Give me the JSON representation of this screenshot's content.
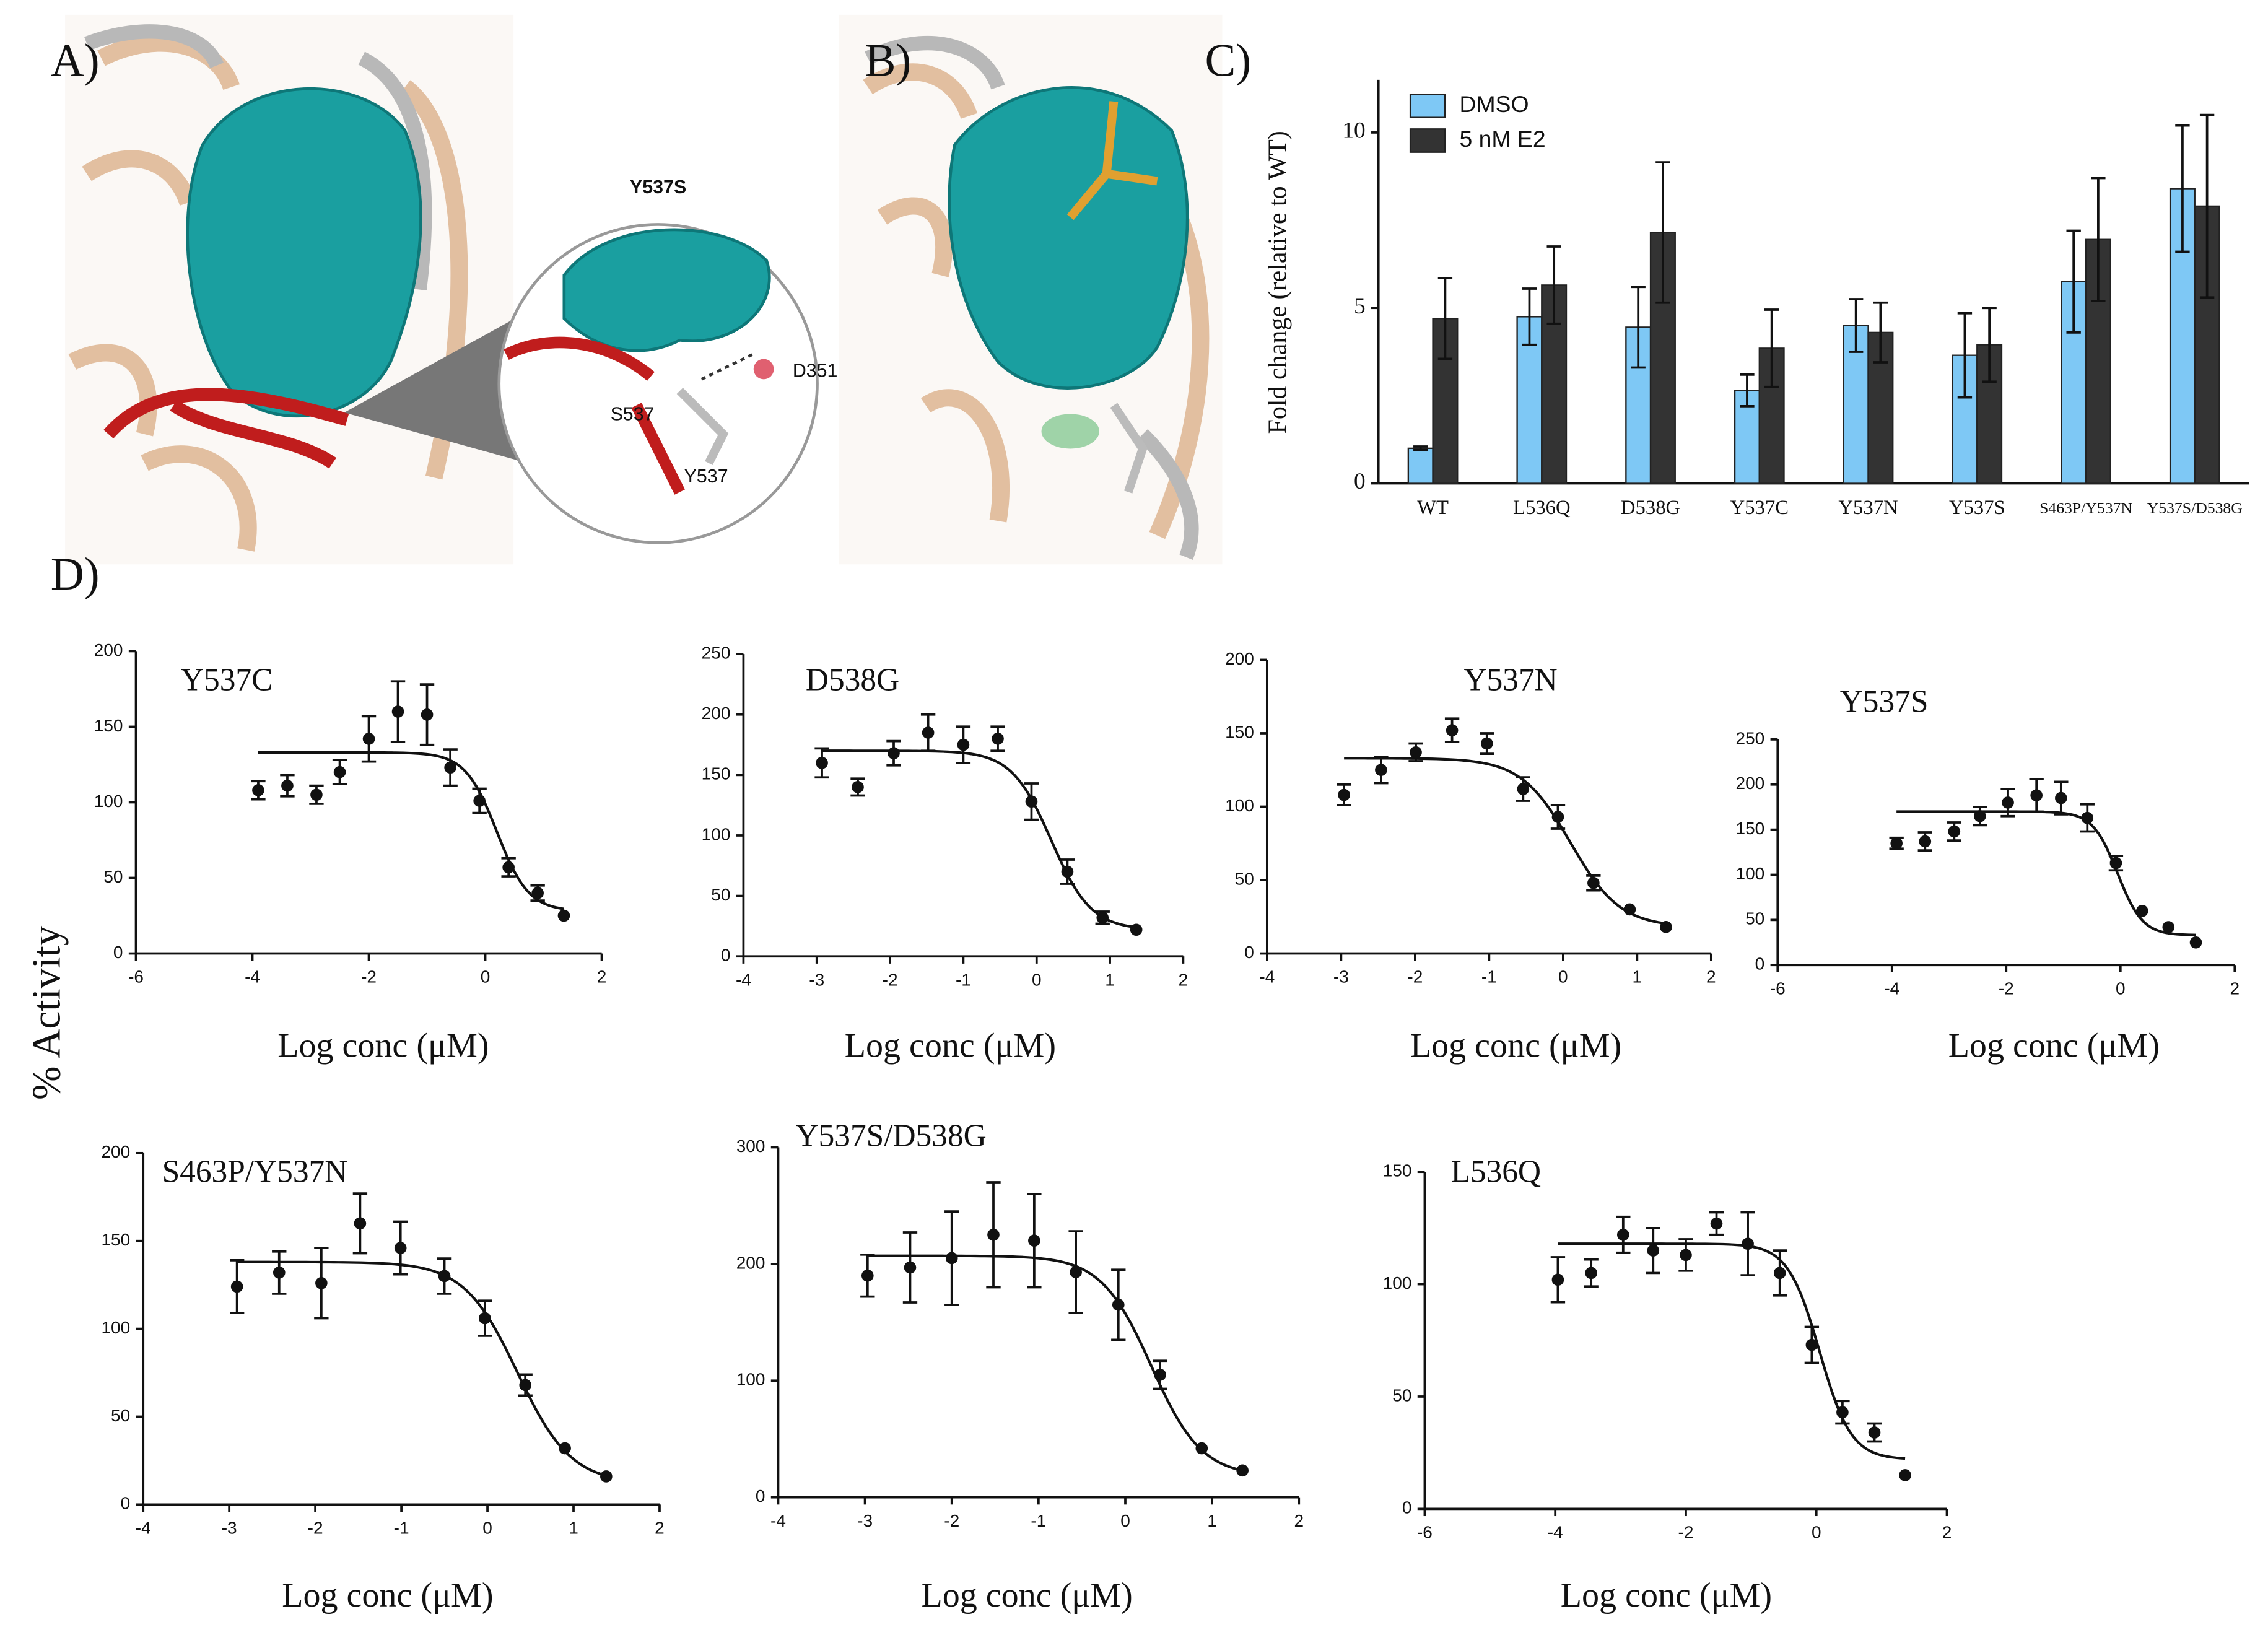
{
  "panels": {
    "A": {
      "label": "A)",
      "annotations": [
        "Y537S",
        "D351",
        "S537",
        "Y537"
      ]
    },
    "B": {
      "label": "B)"
    },
    "C": {
      "label": "C)"
    },
    "D": {
      "label": "D)",
      "y_label": "% Activity"
    }
  },
  "chart_data": [
    {
      "type": "bar",
      "y_label": "Fold change (relative to WT)",
      "categories": [
        "WT",
        "L536Q",
        "D538G",
        "Y537C",
        "Y537N",
        "Y537S",
        "S463P/Y537N",
        "Y537S/D538G"
      ],
      "series": [
        {
          "name": "DMSO",
          "color": "#7ec8f5",
          "values": [
            1.0,
            4.75,
            4.45,
            2.65,
            4.5,
            3.65,
            5.75,
            8.4
          ],
          "errors": [
            0.05,
            0.8,
            1.15,
            0.45,
            0.75,
            1.2,
            1.45,
            1.8
          ]
        },
        {
          "name": "5 nM E2",
          "color": "#333333",
          "values": [
            4.7,
            5.65,
            7.15,
            3.85,
            4.3,
            3.95,
            6.95,
            7.9
          ],
          "errors": [
            1.15,
            1.1,
            2.0,
            1.1,
            0.85,
            1.05,
            1.75,
            2.6
          ]
        }
      ],
      "ylim": [
        0,
        11.5
      ],
      "yticks": [
        0,
        5,
        10
      ],
      "legend": "upper-left"
    },
    {
      "type": "scatter",
      "title": "Y537C",
      "x_label": "Log conc (μM)",
      "color": "#111111",
      "x": [
        -3.9,
        -3.4,
        -2.9,
        -2.5,
        -2.0,
        -1.5,
        -1.0,
        -0.6,
        -0.1,
        0.4,
        0.9,
        1.35
      ],
      "values": [
        108,
        111,
        105,
        120,
        142,
        160,
        158,
        123,
        101,
        57,
        40,
        25
      ],
      "errors": [
        6,
        7,
        6,
        8,
        15,
        20,
        20,
        12,
        8,
        6,
        5,
        0
      ],
      "fit": {
        "top": 133,
        "bottom": 28,
        "log_ic50": 0.2,
        "hill": 1.6
      },
      "xlim": [
        -6,
        2
      ],
      "xticks": [
        -6,
        -4,
        -2,
        0,
        2
      ],
      "ylim": [
        0,
        200
      ],
      "yticks": [
        0,
        50,
        100,
        150,
        200
      ]
    },
    {
      "type": "scatter",
      "title": "D538G",
      "x_label": "Log conc (μM)",
      "color": "#111111",
      "x": [
        -2.93,
        -2.44,
        -1.95,
        -1.48,
        -1.0,
        -0.53,
        -0.07,
        0.42,
        0.9,
        1.36
      ],
      "values": [
        160,
        140,
        168,
        185,
        175,
        180,
        128,
        70,
        32,
        22
      ],
      "errors": [
        12,
        7,
        10,
        15,
        15,
        10,
        15,
        10,
        5,
        0
      ],
      "fit": {
        "top": 170,
        "bottom": 22,
        "log_ic50": 0.2,
        "hill": 1.6
      },
      "xlim": [
        -4,
        2
      ],
      "xticks": [
        -4,
        -3,
        -2,
        -1,
        0,
        1,
        2
      ],
      "ylim": [
        0,
        250
      ],
      "yticks": [
        0,
        50,
        100,
        150,
        200,
        250
      ]
    },
    {
      "type": "scatter",
      "title": "Y537N",
      "x_label": "Log conc (μM)",
      "color": "#111111",
      "x": [
        -2.96,
        -2.46,
        -1.99,
        -1.5,
        -1.03,
        -0.54,
        -0.07,
        0.41,
        0.9,
        1.39
      ],
      "values": [
        108,
        125,
        137,
        152,
        143,
        112,
        93,
        48,
        30,
        18
      ],
      "errors": [
        7,
        9,
        6,
        8,
        7,
        8,
        8,
        5,
        0,
        0
      ],
      "fit": {
        "top": 133,
        "bottom": 18,
        "log_ic50": 0.1,
        "hill": 1.3
      },
      "xlim": [
        -4,
        2
      ],
      "xticks": [
        -4,
        -3,
        -2,
        -1,
        0,
        1,
        2
      ],
      "ylim": [
        0,
        200
      ],
      "yticks": [
        0,
        50,
        100,
        150,
        200
      ]
    },
    {
      "type": "scatter",
      "title": "Y537S",
      "x_label": "Log conc (μM)",
      "color": "#111111",
      "x": [
        -3.92,
        -3.42,
        -2.91,
        -2.46,
        -1.97,
        -1.47,
        -1.04,
        -0.58,
        -0.08,
        0.38,
        0.84,
        1.32
      ],
      "values": [
        135,
        137,
        148,
        165,
        180,
        188,
        185,
        163,
        113,
        60,
        42,
        25
      ],
      "errors": [
        6,
        10,
        10,
        10,
        15,
        18,
        18,
        15,
        8,
        0,
        0,
        0
      ],
      "fit": {
        "top": 170,
        "bottom": 33,
        "log_ic50": -0.05,
        "hill": 2.0
      },
      "xlim": [
        -6,
        2
      ],
      "xticks": [
        -6,
        -4,
        -2,
        0,
        2
      ],
      "ylim": [
        0,
        250
      ],
      "yticks": [
        0,
        50,
        100,
        150,
        200,
        250
      ]
    },
    {
      "type": "scatter",
      "title": "S463P/Y537N",
      "x_label": "Log conc (μM)",
      "color": "#111111",
      "x": [
        -2.91,
        -2.42,
        -1.93,
        -1.48,
        -1.01,
        -0.5,
        -0.03,
        0.44,
        0.9,
        1.38
      ],
      "values": [
        124,
        132,
        126,
        160,
        146,
        130,
        106,
        68,
        32,
        16
      ],
      "errors": [
        15,
        12,
        20,
        17,
        15,
        10,
        10,
        6,
        0,
        0
      ],
      "fit": {
        "top": 138,
        "bottom": 12,
        "log_ic50": 0.35,
        "hill": 1.4
      },
      "xlim": [
        -4,
        2
      ],
      "xticks": [
        -4,
        -3,
        -2,
        -1,
        0,
        1,
        2
      ],
      "ylim": [
        0,
        200
      ],
      "yticks": [
        0,
        50,
        100,
        150,
        200
      ]
    },
    {
      "type": "scatter",
      "title": "Y537S/D538G",
      "x_label": "Log conc (μM)",
      "color": "#111111",
      "x": [
        -2.97,
        -2.48,
        -2.0,
        -1.52,
        -1.05,
        -0.57,
        -0.08,
        0.4,
        0.88,
        1.35
      ],
      "values": [
        190,
        197,
        205,
        225,
        220,
        193,
        165,
        105,
        42,
        23
      ],
      "errors": [
        18,
        30,
        40,
        45,
        40,
        35,
        30,
        12,
        0,
        0
      ],
      "fit": {
        "top": 207,
        "bottom": 18,
        "log_ic50": 0.3,
        "hill": 1.5
      },
      "xlim": [
        -4,
        2
      ],
      "xticks": [
        -4,
        -3,
        -2,
        -1,
        0,
        1,
        2
      ],
      "ylim": [
        0,
        300
      ],
      "yticks": [
        0,
        100,
        200,
        300
      ]
    },
    {
      "type": "scatter",
      "title": "L536Q",
      "x_label": "Log conc (μM)",
      "color": "#111111",
      "x": [
        -3.96,
        -3.45,
        -2.96,
        -2.5,
        -2.0,
        -1.53,
        -1.05,
        -0.56,
        -0.07,
        0.4,
        0.89,
        1.36
      ],
      "values": [
        102,
        105,
        122,
        115,
        113,
        127,
        118,
        105,
        73,
        43,
        34,
        15
      ],
      "errors": [
        10,
        6,
        8,
        10,
        7,
        5,
        14,
        10,
        8,
        5,
        4,
        0
      ],
      "fit": {
        "top": 118,
        "bottom": 22,
        "log_ic50": 0.05,
        "hill": 1.8
      },
      "xlim": [
        -6,
        2
      ],
      "xticks": [
        -6,
        -4,
        -2,
        0,
        2
      ],
      "ylim": [
        0,
        150
      ],
      "yticks": [
        0,
        50,
        100,
        150
      ]
    }
  ]
}
